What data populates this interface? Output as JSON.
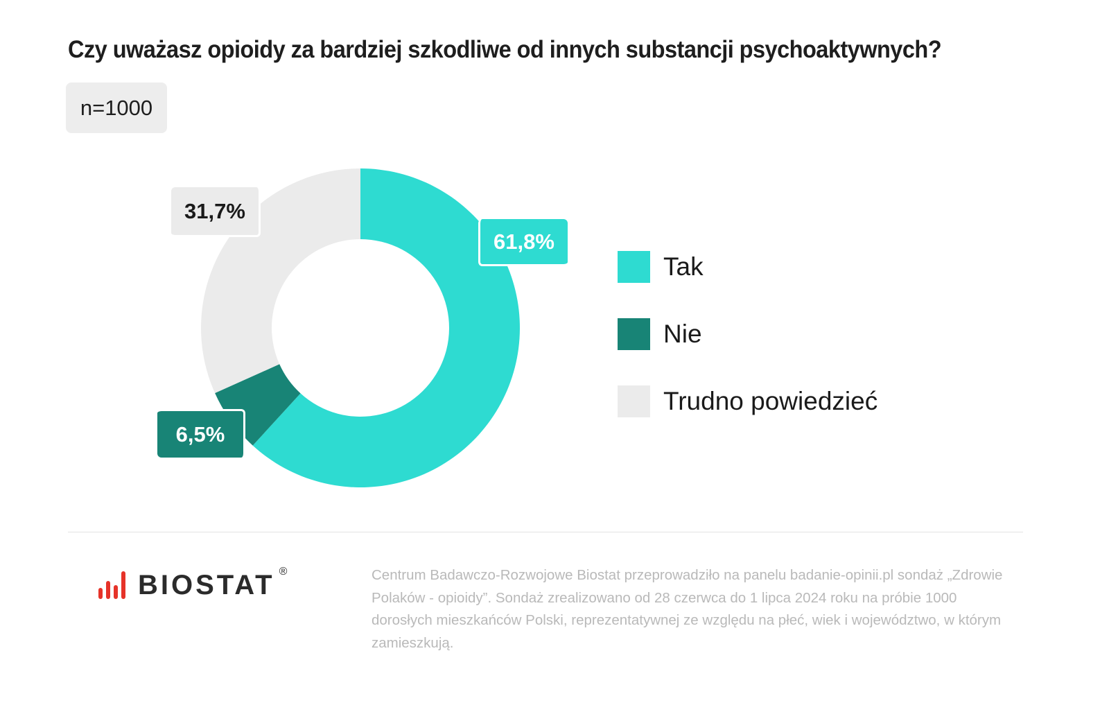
{
  "header": {
    "title": "Czy uważasz opioidy za bardziej szkodliwe od innych substancji psychoaktywnych?",
    "sample_badge": "n=1000"
  },
  "chart_data": {
    "type": "pie",
    "variant": "donut",
    "title": "Czy uważasz opioidy za bardziej szkodliwe od innych substancji psychoaktywnych?",
    "subtitle": "n=1000",
    "categories": [
      "Tak",
      "Nie",
      "Trudno powiedzieć"
    ],
    "values": [
      61.8,
      6.5,
      31.7
    ],
    "value_labels": [
      "61,8%",
      "6,5%",
      "31,7%"
    ],
    "colors": [
      "#2edbd1",
      "#188476",
      "#ebebeb"
    ],
    "unit": "%",
    "start_angle": "12 o'clock, clockwise",
    "legend_position": "right"
  },
  "labels": {
    "tak": "61,8%",
    "nie": "6,5%",
    "trudno": "31,7%"
  },
  "legend": {
    "items": [
      {
        "label": "Tak",
        "color": "#2edbd1"
      },
      {
        "label": "Nie",
        "color": "#188476"
      },
      {
        "label": "Trudno powiedzieć",
        "color": "#ebebeb"
      }
    ]
  },
  "footer": {
    "brand": "BIOSTAT",
    "registered_mark": "®",
    "brand_accent_color": "#e63329",
    "note": "Centrum Badawczo-Rozwojowe Biostat przeprowadziło na panelu badanie-opinii.pl sondaż „Zdrowie Polaków - opioidy”. Sondaż zrealizowano od 28 czerwca do 1 lipca 2024 roku na próbie 1000 dorosłych mieszkańców Polski, reprezentatywnej ze względu na płeć, wiek i województwo, w którym zamieszkują."
  }
}
